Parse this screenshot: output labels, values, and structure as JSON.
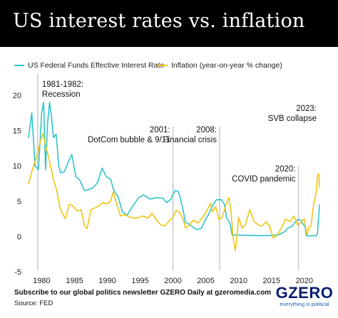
{
  "header": {
    "title": "US interest rates vs. inflation"
  },
  "colors": {
    "fed_funds": "#2ec4c9",
    "inflation": "#f2c513",
    "annotation_line": "#c9c9c9",
    "header_bg": "#000000",
    "logo": "#0a1e6e"
  },
  "footer": {
    "subscribe": "Subscribe to our global politics newsletter GZERO Daily at gzeromedia.com",
    "source": "Source: FED"
  },
  "logo": {
    "wordmark": "GZERO",
    "tagline": "everything is political"
  },
  "chart_data": {
    "type": "line",
    "title": "US interest rates vs. inflation",
    "xlabel": "",
    "ylabel": "",
    "xlim": [
      1978,
      2022.3
    ],
    "ylim": [
      -5,
      20
    ],
    "x_ticks": [
      1980,
      1985,
      1990,
      1995,
      2000,
      2005,
      2010,
      2015,
      2020
    ],
    "y_ticks": [
      -5,
      0,
      5,
      10,
      15,
      20
    ],
    "grid": false,
    "legend": "top-left",
    "series": [
      {
        "name": "US Federal Funds Effective Interest Rate",
        "color": "#2ec4c9",
        "x": [
          1978.0,
          1978.5,
          1979.0,
          1979.5,
          1979.8,
          1980.0,
          1980.3,
          1980.6,
          1980.9,
          1981.2,
          1981.5,
          1981.8,
          1982.2,
          1982.6,
          1982.9,
          1983.5,
          1984.0,
          1984.6,
          1985.2,
          1985.8,
          1986.5,
          1987.0,
          1987.8,
          1988.5,
          1989.2,
          1989.8,
          1990.5,
          1991.0,
          1991.6,
          1992.3,
          1993.0,
          1994.0,
          1994.8,
          1995.5,
          1996.5,
          1997.5,
          1998.5,
          1999.0,
          1999.6,
          2000.3,
          2000.8,
          2001.1,
          2001.5,
          2001.9,
          2002.5,
          2003.5,
          2004.3,
          2004.9,
          2005.5,
          2006.0,
          2006.6,
          2007.4,
          2007.8,
          2008.2,
          2008.7,
          2009.0,
          2010.0,
          2012.0,
          2014.0,
          2015.9,
          2016.5,
          2017.0,
          2017.5,
          2018.0,
          2018.5,
          2019.0,
          2019.5,
          2019.9,
          2020.1,
          2020.3,
          2021.0,
          2021.8,
          2022.0,
          2022.3
        ],
        "values": [
          14.0,
          17.5,
          10.0,
          9.5,
          14.0,
          17.5,
          19.0,
          9.5,
          16.0,
          19.0,
          17.0,
          14.0,
          14.5,
          10.0,
          9.0,
          9.2,
          10.5,
          11.6,
          8.5,
          8.0,
          6.5,
          6.6,
          6.9,
          7.6,
          9.7,
          8.5,
          8.1,
          6.5,
          5.7,
          3.5,
          3.0,
          4.5,
          5.5,
          5.9,
          5.3,
          5.5,
          5.4,
          4.8,
          5.2,
          6.5,
          6.4,
          5.5,
          3.9,
          2.0,
          1.7,
          1.0,
          1.1,
          2.3,
          3.3,
          4.3,
          5.2,
          5.2,
          4.6,
          2.6,
          1.8,
          0.2,
          0.2,
          0.15,
          0.1,
          0.2,
          0.4,
          0.7,
          1.2,
          1.4,
          1.9,
          2.4,
          2.3,
          1.6,
          1.5,
          0.1,
          0.1,
          0.1,
          0.4,
          4.5
        ]
      },
      {
        "name": "Inflation (year-on-year % change)",
        "color": "#f2c513",
        "x": [
          1978.0,
          1978.6,
          1979.2,
          1979.8,
          1980.2,
          1980.6,
          1981.0,
          1981.4,
          1981.8,
          1982.3,
          1982.8,
          1983.2,
          1983.6,
          1984.2,
          1984.8,
          1985.4,
          1986.0,
          1986.5,
          1986.9,
          1987.5,
          1988.0,
          1988.7,
          1989.3,
          1989.9,
          1990.5,
          1990.9,
          1991.5,
          1992.0,
          1992.6,
          1993.3,
          1994.0,
          1994.8,
          1995.5,
          1996.2,
          1996.8,
          1997.5,
          1998.2,
          1998.8,
          1999.5,
          2000.0,
          2000.5,
          2001.0,
          2001.5,
          2001.9,
          2002.5,
          2003.1,
          2003.8,
          2004.5,
          2005.0,
          2005.7,
          2006.0,
          2006.5,
          2007.0,
          2007.5,
          2008.0,
          2008.5,
          2008.8,
          2009.2,
          2009.5,
          2010.0,
          2010.5,
          2011.0,
          2011.7,
          2012.3,
          2013.0,
          2013.6,
          2014.2,
          2014.8,
          2015.2,
          2015.8,
          2016.5,
          2017.2,
          2017.8,
          2018.4,
          2019.0,
          2019.5,
          2020.0,
          2020.4,
          2020.7,
          2021.0,
          2021.4,
          2021.8,
          2022.0,
          2022.2,
          2022.3
        ],
        "values": [
          7.5,
          9.5,
          11.2,
          13.5,
          14.6,
          12.8,
          11.5,
          9.8,
          8.0,
          6.5,
          4.0,
          3.2,
          2.5,
          4.6,
          4.3,
          3.6,
          3.8,
          1.6,
          1.1,
          3.8,
          4.0,
          4.3,
          4.8,
          4.6,
          5.0,
          6.3,
          4.4,
          2.9,
          3.1,
          2.8,
          2.6,
          2.7,
          2.9,
          2.6,
          3.3,
          2.3,
          1.6,
          1.5,
          2.3,
          2.7,
          3.7,
          3.4,
          2.6,
          1.2,
          1.6,
          2.3,
          1.9,
          2.7,
          3.4,
          4.7,
          3.5,
          4.2,
          2.4,
          2.7,
          4.3,
          5.5,
          3.8,
          -0.5,
          -2.0,
          2.7,
          1.2,
          1.6,
          3.8,
          2.2,
          1.6,
          1.5,
          2.1,
          1.3,
          -0.2,
          0.1,
          1.2,
          2.5,
          2.1,
          2.9,
          1.6,
          2.0,
          2.5,
          0.2,
          1.3,
          1.4,
          4.5,
          6.2,
          8.5,
          8.9,
          7.0
        ]
      }
    ],
    "annotations": [
      {
        "x": 1979.4,
        "line": true,
        "text": [
          "1981-1982:",
          "Recession"
        ]
      },
      {
        "x": 2000.0,
        "line": true,
        "text": [
          "2001:",
          "DotCom bubble & 9/11"
        ]
      },
      {
        "x": 2007.1,
        "line": true,
        "text": [
          "2008:",
          "Financial crisis"
        ]
      },
      {
        "x": 2019.1,
        "line": true,
        "text": [
          "2020:",
          "COVID pandemic"
        ]
      },
      {
        "x": 2022.3,
        "line": false,
        "text": [
          "2023:",
          "SVB collapse"
        ]
      }
    ]
  }
}
